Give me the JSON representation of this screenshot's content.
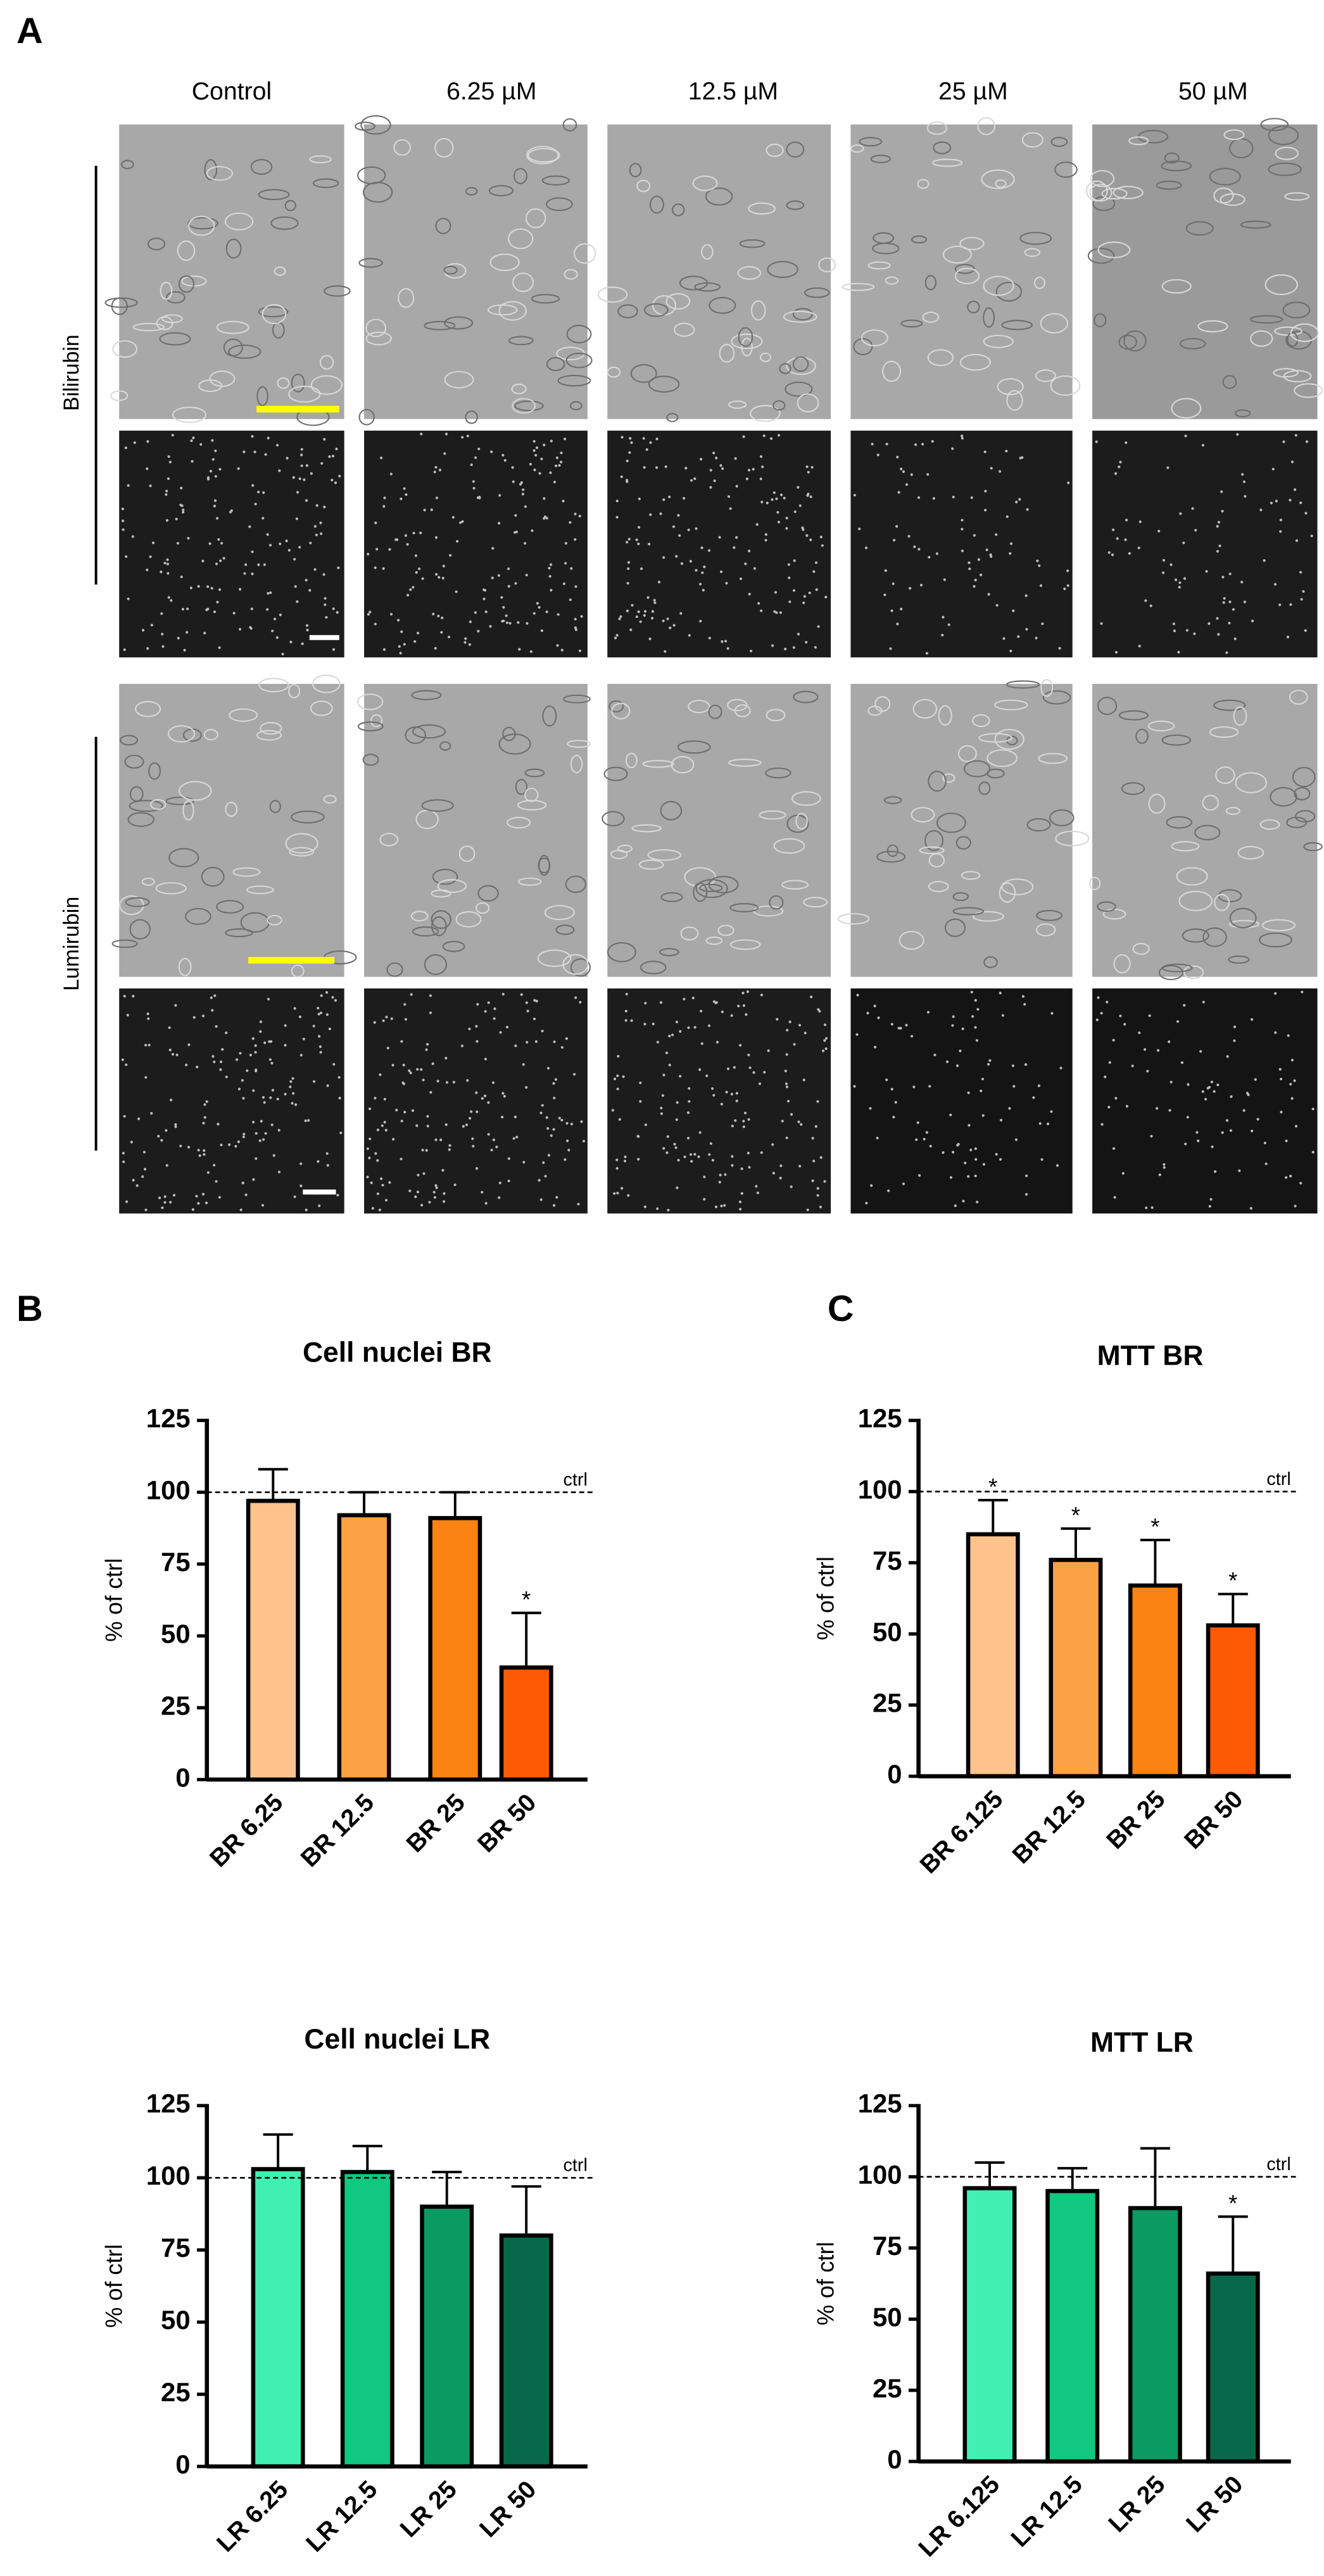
{
  "panel_labels": [
    "A",
    "B",
    "C"
  ],
  "column_headers": [
    "Control",
    "6.25 µM",
    "12.5 µM",
    "25 µM",
    "50 µM"
  ],
  "row_labels": [
    "Bilirubin",
    "Lumirubin"
  ],
  "chart_data": [
    {
      "type": "bar",
      "title": "Cell nuclei BR",
      "ylabel": "% of ctrl",
      "categories": [
        "BR 6.25",
        "BR 12.5",
        "BR 25",
        "BR 50"
      ],
      "values": [
        97,
        92,
        91,
        39
      ],
      "errors": [
        11,
        8,
        9,
        19
      ],
      "colors": [
        "#fdc38a",
        "#fca244",
        "#fb8312",
        "#fc5a04"
      ],
      "significance": [
        null,
        null,
        null,
        "*"
      ],
      "ylim": [
        0,
        125
      ],
      "yticks": [
        0,
        25,
        50,
        75,
        100,
        125
      ],
      "reference_line": {
        "value": 100,
        "label": "ctrl"
      }
    },
    {
      "type": "bar",
      "title": "MTT BR",
      "ylabel": "% of ctrl",
      "categories": [
        "BR 6.125",
        "BR 12.5",
        "BR 25",
        "BR 50"
      ],
      "values": [
        85,
        76,
        67,
        53
      ],
      "errors": [
        12,
        11,
        16,
        11
      ],
      "colors": [
        "#fdc38a",
        "#fca244",
        "#fb8312",
        "#fc5a04"
      ],
      "significance": [
        "*",
        "*",
        "*",
        "*"
      ],
      "ylim": [
        0,
        125
      ],
      "yticks": [
        0,
        25,
        50,
        75,
        100,
        125
      ],
      "reference_line": {
        "value": 100,
        "label": "ctrl"
      }
    },
    {
      "type": "bar",
      "title": "Cell nuclei LR",
      "ylabel": "% of ctrl",
      "categories": [
        "LR 6.25",
        "LR 12.5",
        "LR 25",
        "LR 50"
      ],
      "values": [
        103,
        102,
        90,
        80
      ],
      "errors": [
        12,
        9,
        12,
        17
      ],
      "colors": [
        "#3ff0b2",
        "#10c880",
        "#0a9a62",
        "#08694a"
      ],
      "significance": [
        null,
        null,
        null,
        null
      ],
      "ylim": [
        0,
        125
      ],
      "yticks": [
        0,
        25,
        50,
        75,
        100,
        125
      ],
      "reference_line": {
        "value": 100,
        "label": "ctrl"
      }
    },
    {
      "type": "bar",
      "title": "MTT LR",
      "ylabel": "% of ctrl",
      "categories": [
        "LR 6.125",
        "LR 12.5",
        "LR 25",
        "LR 50"
      ],
      "values": [
        96,
        95,
        89,
        66
      ],
      "errors": [
        9,
        8,
        21,
        20
      ],
      "colors": [
        "#3ff0b2",
        "#10c880",
        "#0a9a62",
        "#08694a"
      ],
      "significance": [
        null,
        null,
        null,
        "*"
      ],
      "ylim": [
        0,
        125
      ],
      "yticks": [
        0,
        25,
        50,
        75,
        100,
        125
      ],
      "reference_line": {
        "value": 100,
        "label": "ctrl"
      }
    }
  ]
}
